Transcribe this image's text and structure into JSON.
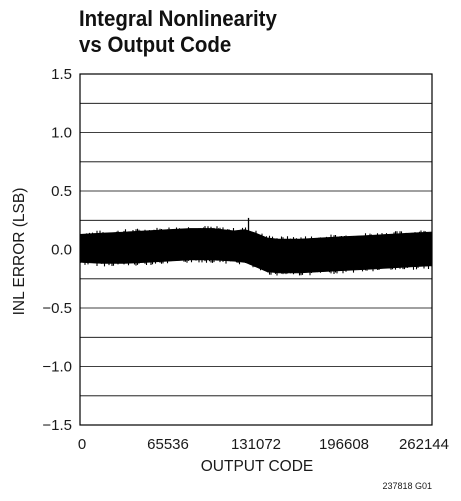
{
  "chart_data": {
    "type": "line",
    "title_lines": [
      "Integral Nonlinearity",
      "vs Output Code"
    ],
    "xlabel": "OUTPUT CODE",
    "ylabel": "INL ERROR (LSB)",
    "xlim": [
      0,
      262144
    ],
    "ylim": [
      -1.5,
      1.5
    ],
    "x_ticks": [
      {
        "value": 0,
        "label": "0"
      },
      {
        "value": 65536,
        "label": "65536"
      },
      {
        "value": 131072,
        "label": "131072"
      },
      {
        "value": 196608,
        "label": "196608"
      },
      {
        "value": 262144,
        "label": "262144"
      }
    ],
    "y_ticks": [
      {
        "value": 1.5,
        "label": "1.5"
      },
      {
        "value": 1.0,
        "label": "1.0"
      },
      {
        "value": 0.5,
        "label": "0.5"
      },
      {
        "value": 0.0,
        "label": "0.0"
      },
      {
        "value": -0.5,
        "label": "−0.5"
      },
      {
        "value": -1.0,
        "label": "−1.0"
      },
      {
        "value": -1.5,
        "label": "−1.5"
      }
    ],
    "grid": true,
    "series": [
      {
        "color": "#000000",
        "band": {
          "x": [
            0,
            16384,
            32768,
            49152,
            65536,
            81920,
            98304,
            114688,
            122880,
            131072,
            139264,
            147456,
            163840,
            180224,
            196608,
            212992,
            229376,
            245760,
            262144
          ],
          "upper": [
            0.13,
            0.14,
            0.15,
            0.16,
            0.17,
            0.18,
            0.18,
            0.16,
            0.17,
            0.14,
            0.1,
            0.09,
            0.09,
            0.1,
            0.11,
            0.12,
            0.13,
            0.14,
            0.15
          ],
          "lower": [
            -0.11,
            -0.12,
            -0.12,
            -0.11,
            -0.1,
            -0.09,
            -0.09,
            -0.1,
            -0.11,
            -0.15,
            -0.19,
            -0.2,
            -0.2,
            -0.19,
            -0.18,
            -0.17,
            -0.16,
            -0.15,
            -0.14
          ]
        },
        "spikes": [
          {
            "x": 125500,
            "y": 0.27
          }
        ]
      }
    ]
  },
  "figure_id": "237818 G01"
}
